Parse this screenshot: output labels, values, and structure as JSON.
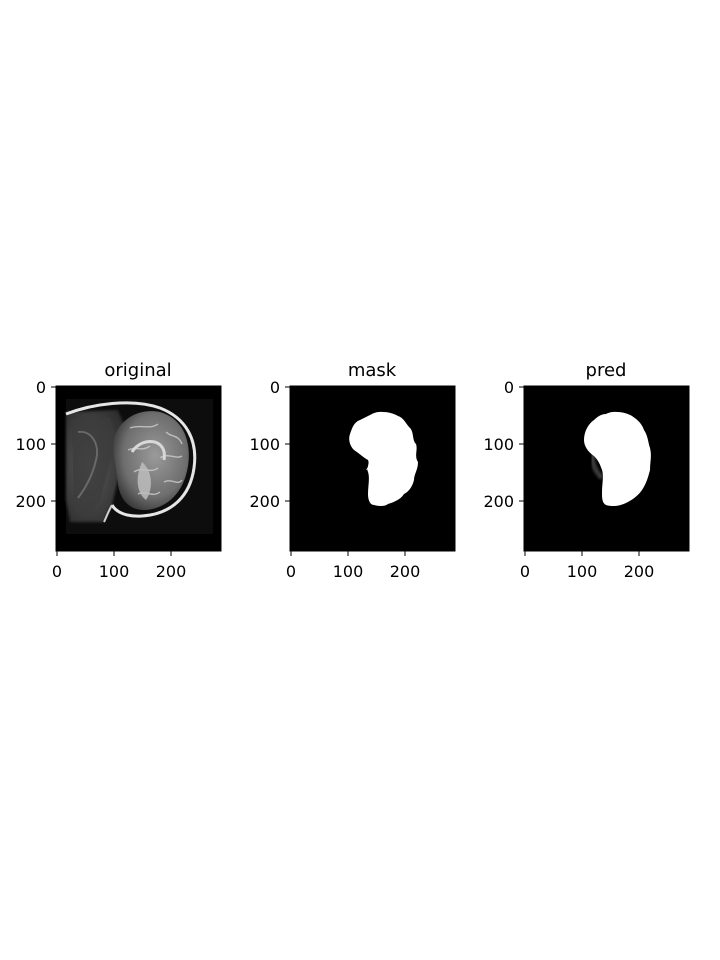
{
  "panels": [
    {
      "title": "original",
      "content": "mri-sagittal-head-slice",
      "x_ticks": [
        "0",
        "100",
        "200"
      ],
      "y_ticks": [
        "0",
        "100",
        "200"
      ]
    },
    {
      "title": "mask",
      "content": "binary-brain-mask",
      "x_ticks": [
        "0",
        "100",
        "200"
      ],
      "y_ticks": [
        "0",
        "100",
        "200"
      ]
    },
    {
      "title": "pred",
      "content": "predicted-brain-mask",
      "x_ticks": [
        "0",
        "100",
        "200"
      ],
      "y_ticks": [
        "0",
        "100",
        "200"
      ]
    }
  ],
  "colors": {
    "background": "#ffffff",
    "image_background": "#000000",
    "mask_foreground": "#ffffff"
  }
}
